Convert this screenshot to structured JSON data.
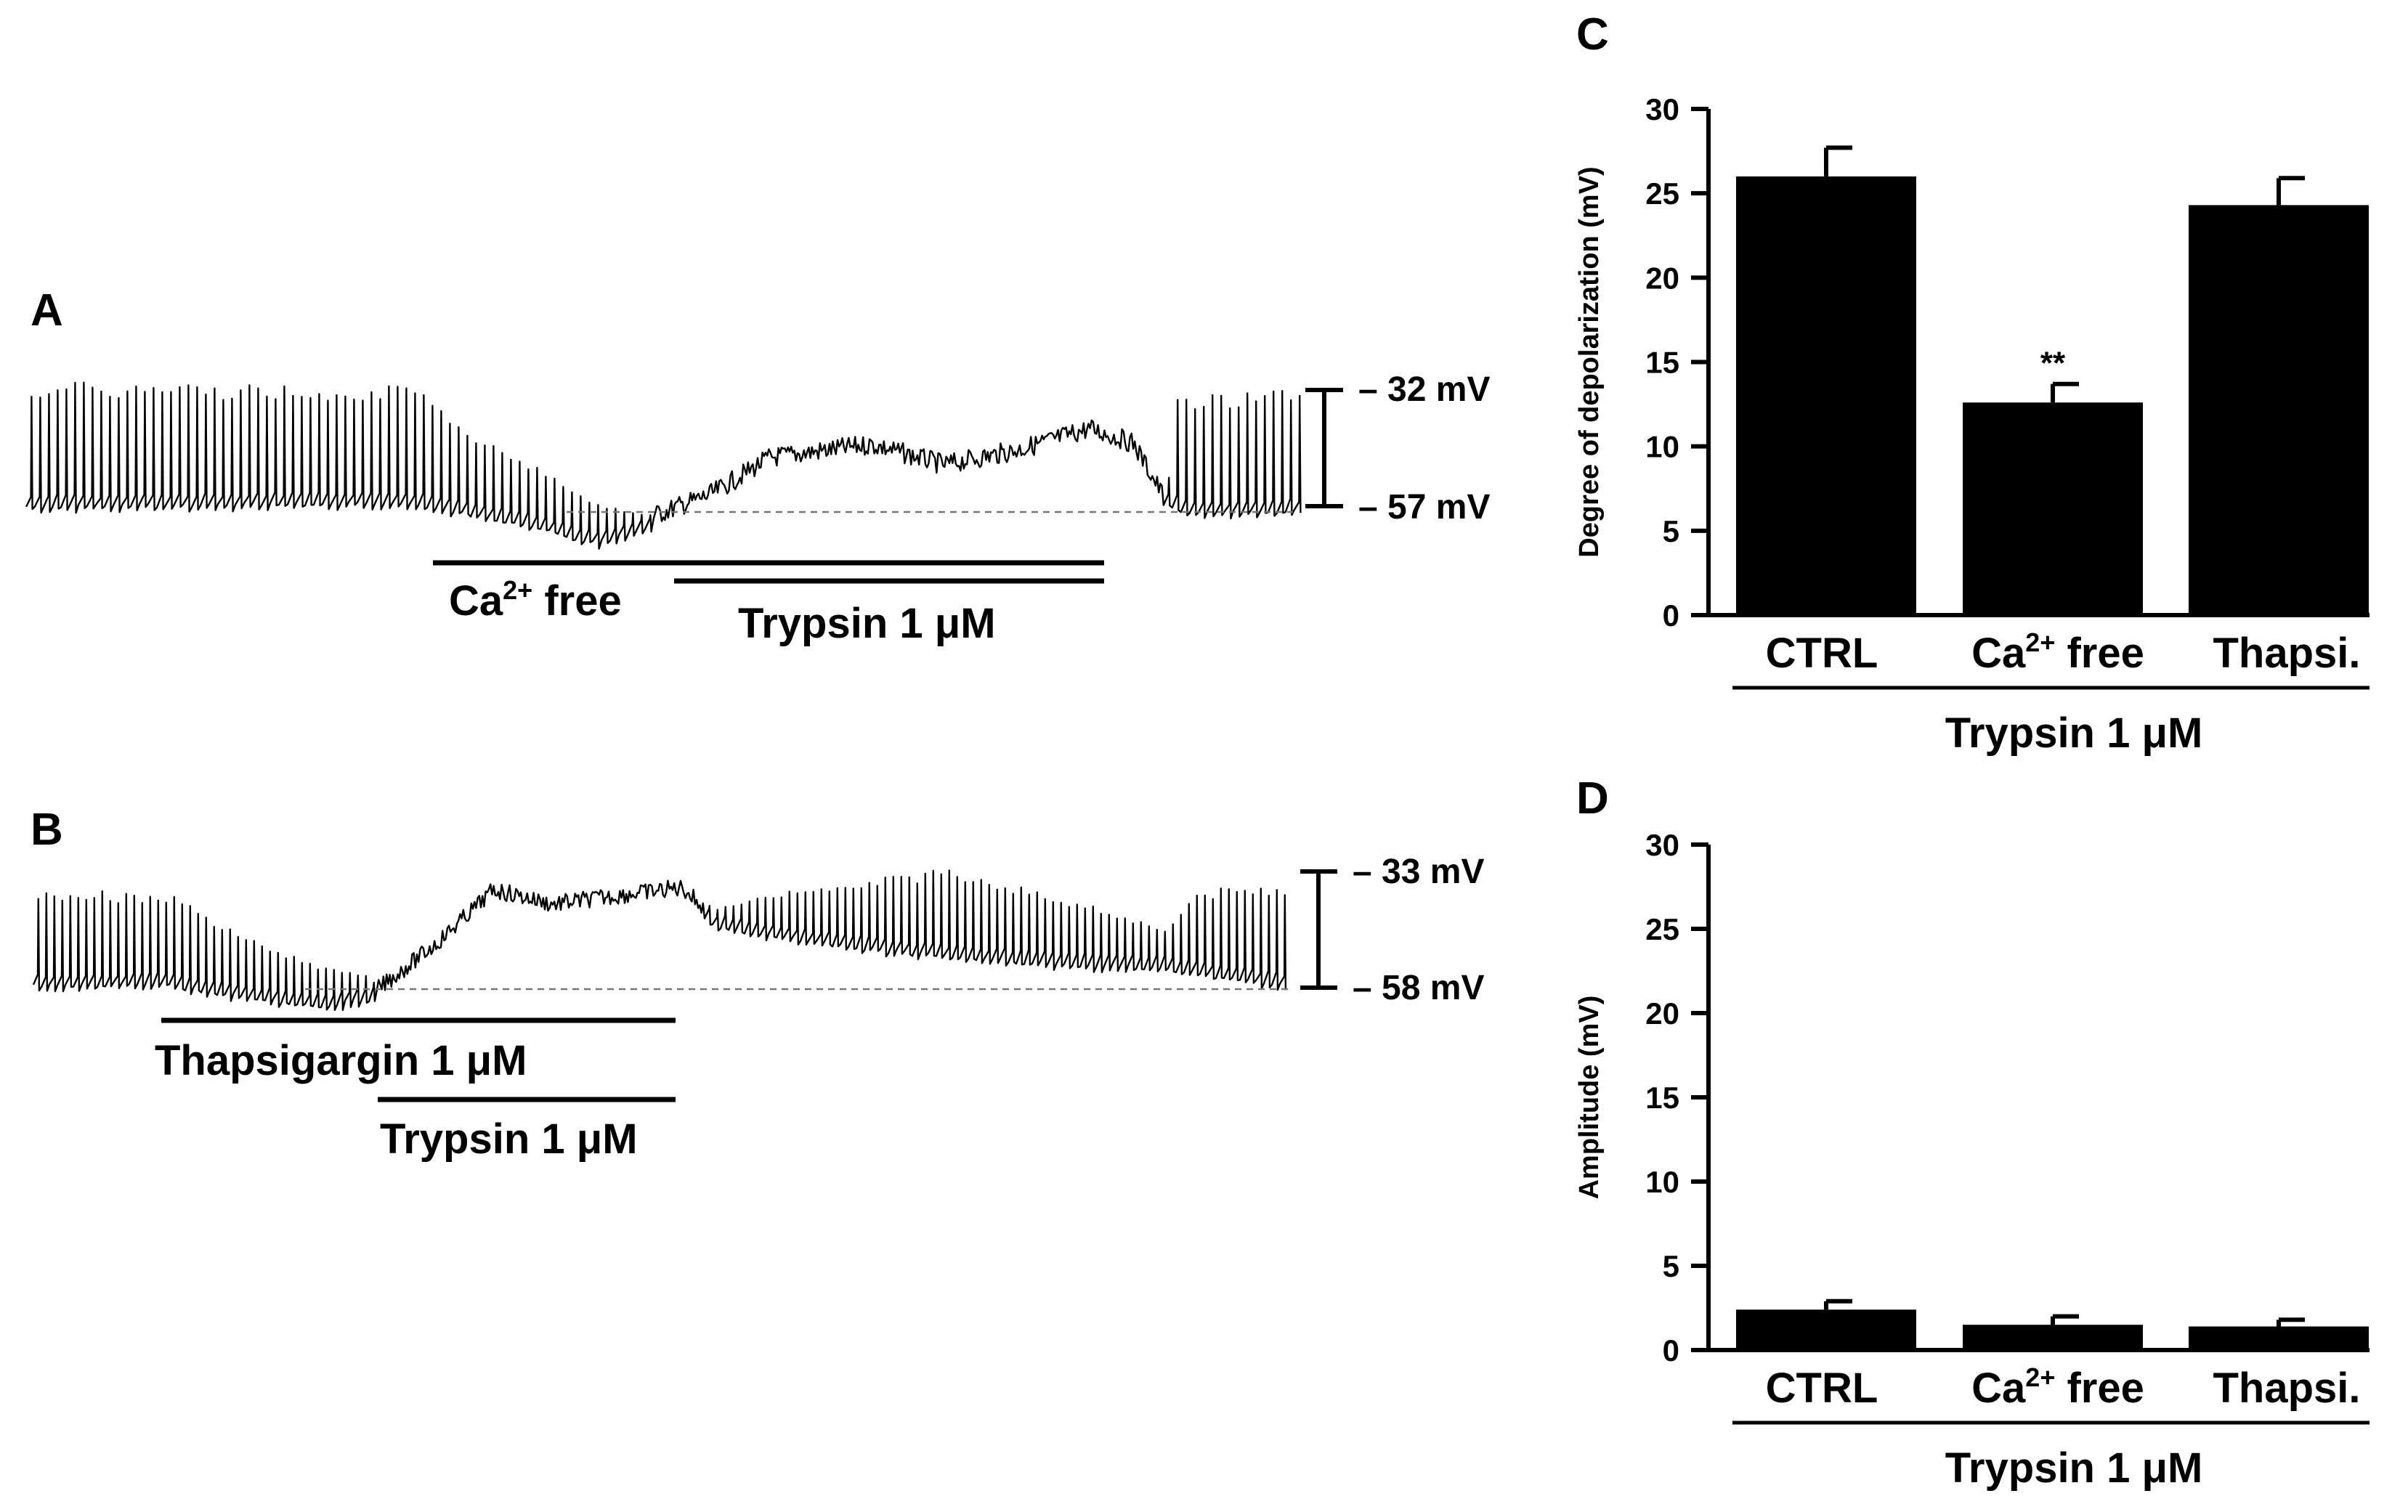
{
  "panels": {
    "A": {
      "letter": "A",
      "scale_top": "– 32 mV",
      "scale_bottom": "– 57 mV",
      "bar1_label_base": "Ca",
      "bar1_label_sup": "2+",
      "bar1_label_rest": " free",
      "bar2_label": "Trypsin 1 μM"
    },
    "B": {
      "letter": "B",
      "scale_top": "– 33 mV",
      "scale_bottom": "– 58 mV",
      "bar1_label": "Thapsigargin 1 μM",
      "bar2_label": "Trypsin 1 μM"
    },
    "C": {
      "letter": "C"
    },
    "D": {
      "letter": "D"
    }
  },
  "chart_data": [
    {
      "panel": "C",
      "type": "bar",
      "categories": [
        "CTRL",
        "Ca2+ free",
        "Thapsi."
      ],
      "category_parts": [
        [
          "CTRL",
          "",
          ""
        ],
        [
          "Ca",
          "2+",
          " free"
        ],
        [
          "Thapsi.",
          "",
          ""
        ]
      ],
      "values": [
        26.0,
        12.6,
        24.3
      ],
      "errors": [
        1.7,
        1.1,
        1.6
      ],
      "significance": [
        "",
        "**",
        ""
      ],
      "ylabel": "Degree of depolarization (mV)",
      "xlabel": "Trypsin 1 μM",
      "ylim": [
        0,
        30
      ],
      "yticks": [
        0,
        5,
        10,
        15,
        20,
        25,
        30
      ],
      "bar_color": "#000000"
    },
    {
      "panel": "D",
      "type": "bar",
      "categories": [
        "CTRL",
        "Ca2+ free",
        "Thapsi."
      ],
      "category_parts": [
        [
          "CTRL",
          "",
          ""
        ],
        [
          "Ca",
          "2+",
          " free"
        ],
        [
          "Thapsi.",
          "",
          ""
        ]
      ],
      "values": [
        2.4,
        1.5,
        1.4
      ],
      "errors": [
        0.5,
        0.5,
        0.4
      ],
      "significance": [
        "",
        "",
        ""
      ],
      "ylabel": "Amplitude (mV)",
      "xlabel": "Trypsin 1 μM",
      "ylim": [
        0,
        30
      ],
      "yticks": [
        0,
        5,
        10,
        15,
        20,
        25,
        30
      ],
      "bar_color": "#000000"
    }
  ]
}
